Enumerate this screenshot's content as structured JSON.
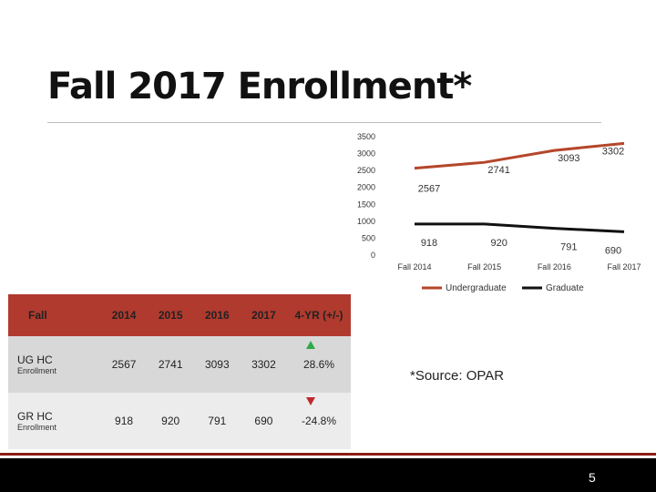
{
  "slide": {
    "title": "Fall 2017 Enrollment*",
    "source": "*Source: OPAR",
    "page_number": "5"
  },
  "table": {
    "headers": [
      "Fall",
      "2014",
      "2015",
      "2016",
      "2017",
      "4-YR (+/-)"
    ],
    "rows": [
      {
        "label": "UG HC",
        "sublabel": "Enrollment",
        "values": [
          "2567",
          "2741",
          "3093",
          "3302"
        ],
        "change": "28.6%",
        "trend": "up"
      },
      {
        "label": "GR HC",
        "sublabel": "Enrollment",
        "values": [
          "918",
          "920",
          "791",
          "690"
        ],
        "change": "-24.8%",
        "trend": "down"
      }
    ]
  },
  "colors": {
    "undergraduate": "#b5462a",
    "graduate": "#111111",
    "header_bg": "#b03a2e",
    "up": "#2eaa4a",
    "down": "#c0282e"
  },
  "chart_data": {
    "type": "line",
    "categories": [
      "Fall 2014",
      "Fall 2015",
      "Fall 2016",
      "Fall 2017"
    ],
    "series": [
      {
        "name": "Undergraduate",
        "values": [
          2567,
          2741,
          3093,
          3302
        ]
      },
      {
        "name": "Graduate",
        "values": [
          918,
          920,
          791,
          690
        ]
      }
    ],
    "yticks": [
      0,
      500,
      1000,
      1500,
      2000,
      2500,
      3000,
      3500
    ],
    "ylim": [
      0,
      3500
    ],
    "legend": "bottom"
  }
}
